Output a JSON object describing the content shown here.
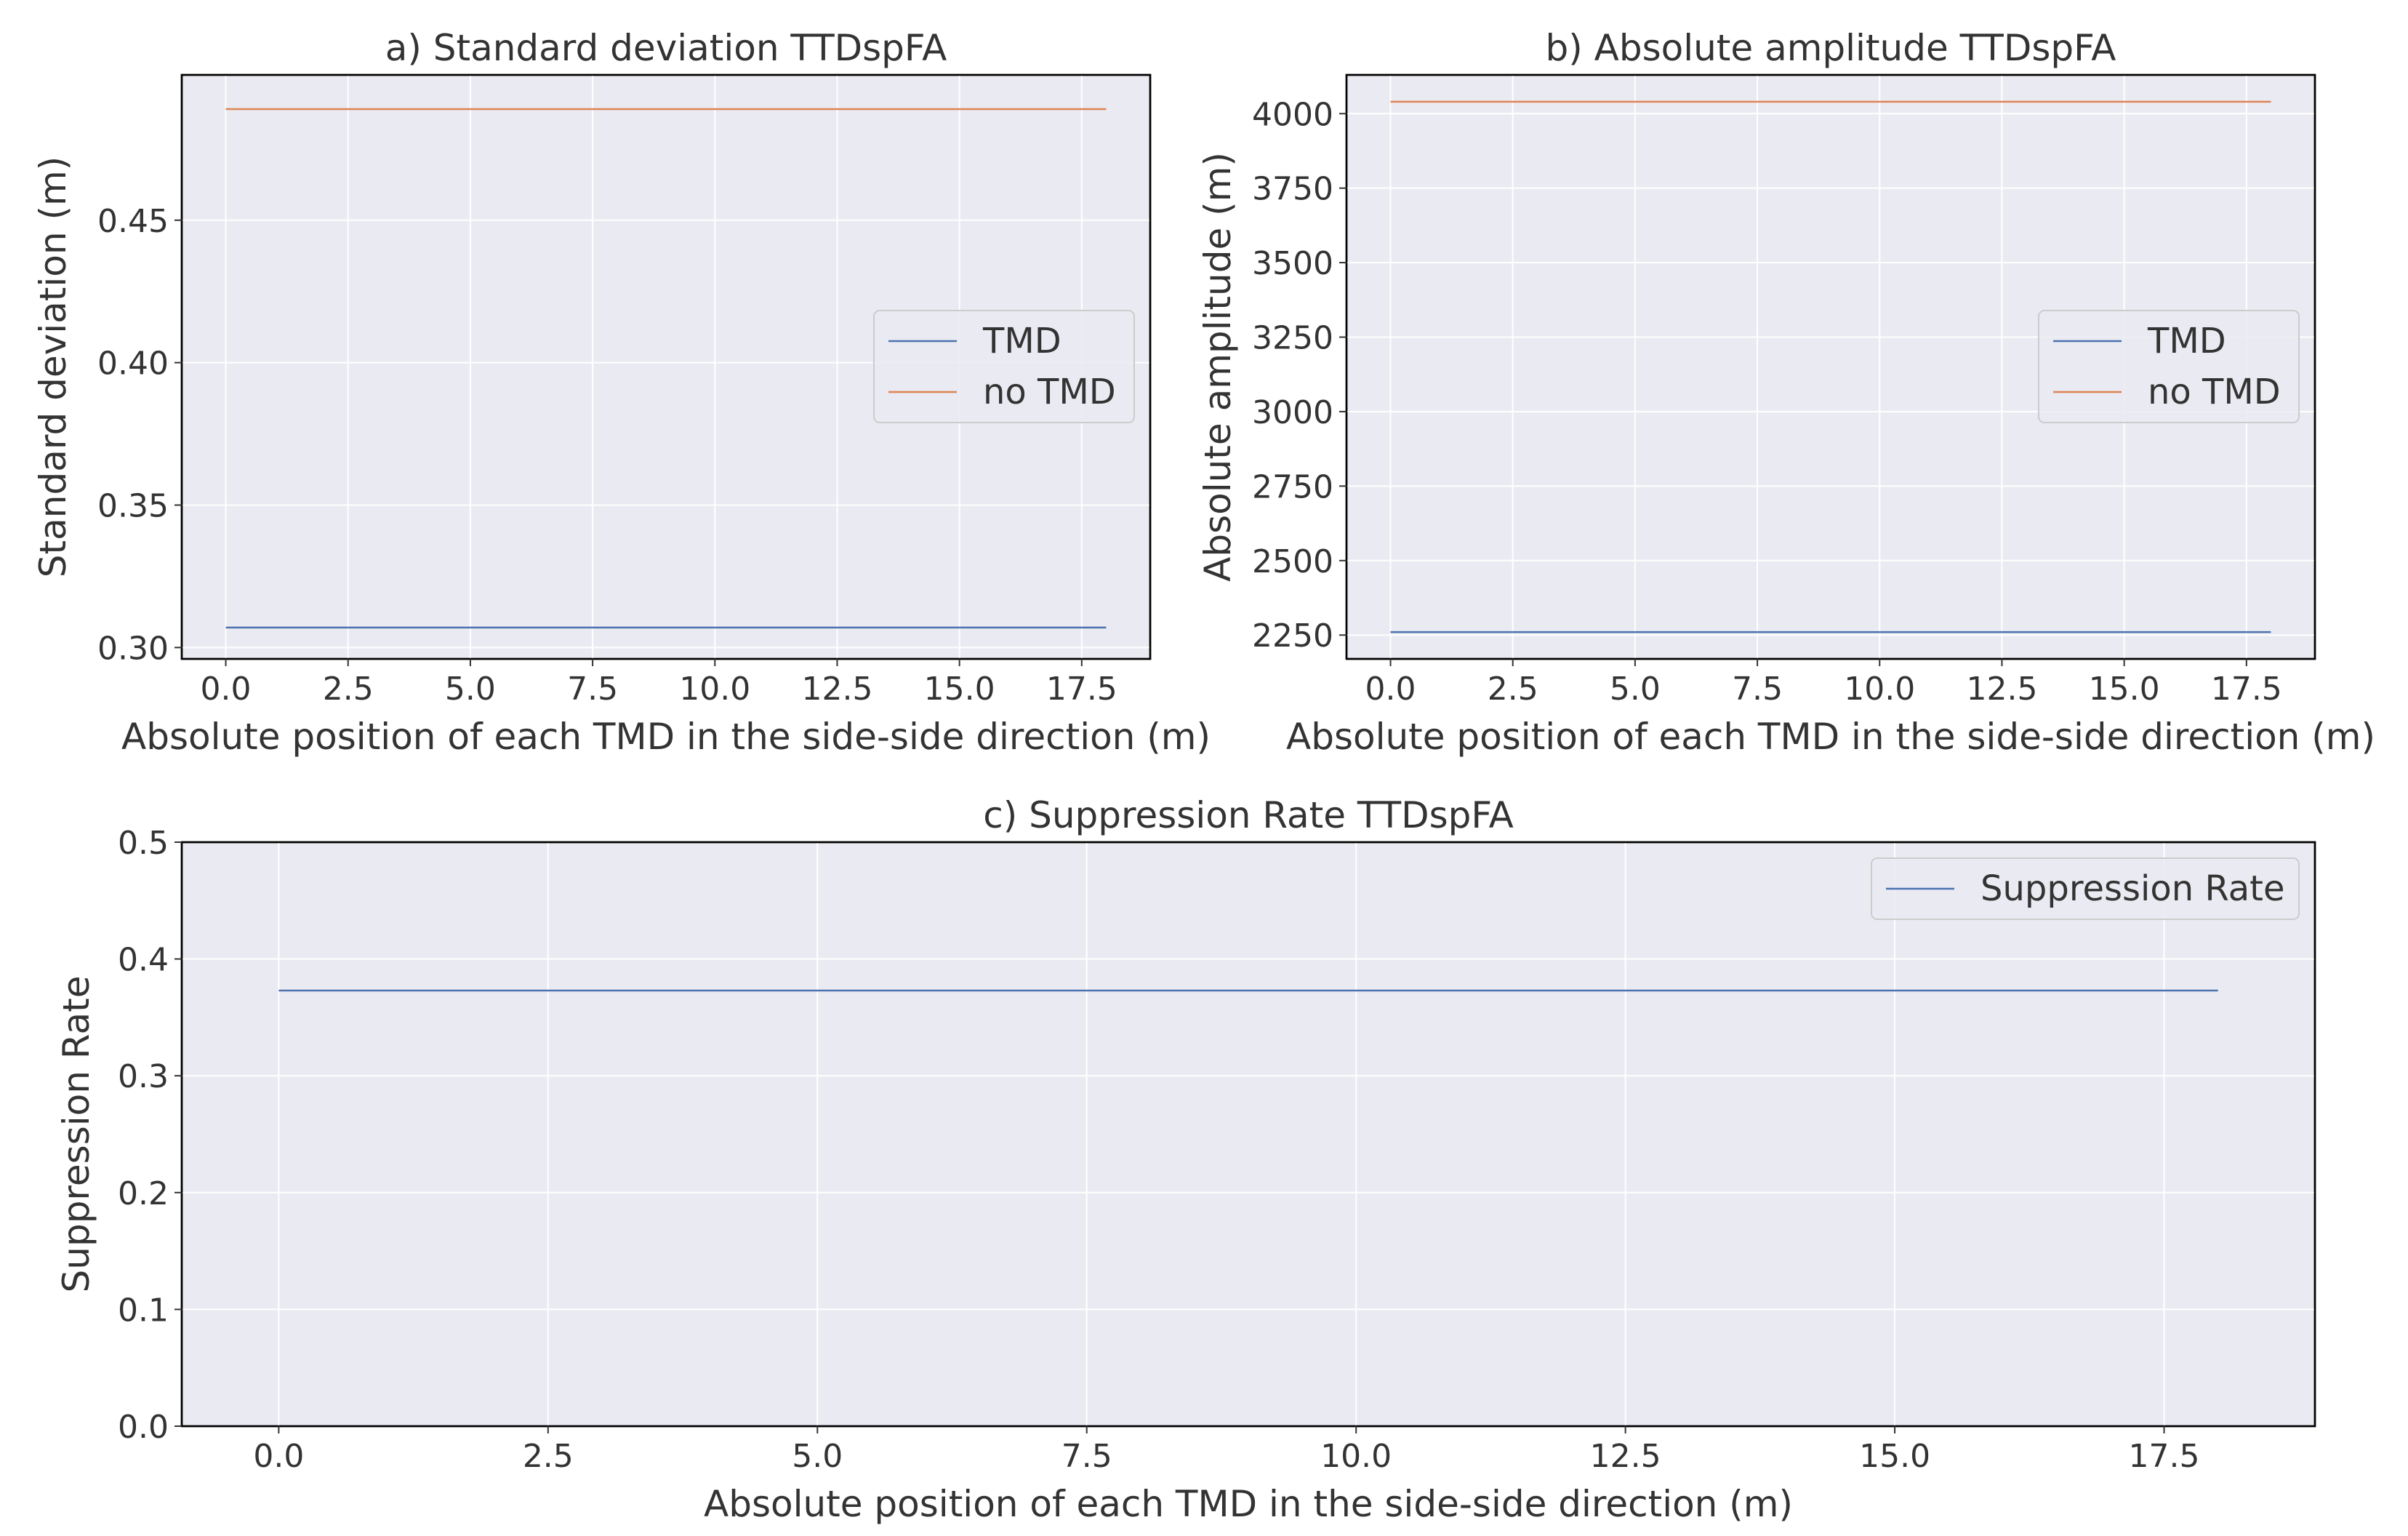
{
  "colors": {
    "tmd": "#4C72B0",
    "no_tmd": "#DD8452",
    "plot_background": "#EAEAF2"
  },
  "chart_data": [
    {
      "type": "line",
      "title": "a) Standard deviation TTDspFA",
      "xlabel": "Absolute position of each TMD in the side-side direction (m)",
      "ylabel": "Standard deviation (m)",
      "xlim": [
        -0.9,
        18.9
      ],
      "ylim": [
        0.296,
        0.501
      ],
      "xticks": [
        0.0,
        2.5,
        5.0,
        7.5,
        10.0,
        12.5,
        15.0,
        17.5
      ],
      "xtick_labels": [
        "0.0",
        "2.5",
        "5.0",
        "7.5",
        "10.0",
        "12.5",
        "15.0",
        "17.5"
      ],
      "yticks": [
        0.3,
        0.35,
        0.4,
        0.45
      ],
      "ytick_labels": [
        "0.30",
        "0.35",
        "0.40",
        "0.45"
      ],
      "grid": true,
      "legend_position": "center-right",
      "series": [
        {
          "name": "TMD",
          "color": "#4C72B0",
          "x": [
            0,
            18
          ],
          "y": [
            0.307,
            0.307
          ]
        },
        {
          "name": "no TMD",
          "color": "#DD8452",
          "x": [
            0,
            18
          ],
          "y": [
            0.489,
            0.489
          ]
        }
      ]
    },
    {
      "type": "line",
      "title": "b) Absolute amplitude TTDspFA",
      "xlabel": "Absolute position of each TMD in the side-side direction (m)",
      "ylabel": "Absolute amplitude (m)",
      "xlim": [
        -0.9,
        18.9
      ],
      "ylim": [
        2170,
        4130
      ],
      "xticks": [
        0.0,
        2.5,
        5.0,
        7.5,
        10.0,
        12.5,
        15.0,
        17.5
      ],
      "xtick_labels": [
        "0.0",
        "2.5",
        "5.0",
        "7.5",
        "10.0",
        "12.5",
        "15.0",
        "17.5"
      ],
      "yticks": [
        2250,
        2500,
        2750,
        3000,
        3250,
        3500,
        3750,
        4000
      ],
      "ytick_labels": [
        "2250",
        "2500",
        "2750",
        "3000",
        "3250",
        "3500",
        "3750",
        "4000"
      ],
      "grid": true,
      "legend_position": "center-right",
      "series": [
        {
          "name": "TMD",
          "color": "#4C72B0",
          "x": [
            0,
            18
          ],
          "y": [
            2260,
            2260
          ]
        },
        {
          "name": "no TMD",
          "color": "#DD8452",
          "x": [
            0,
            18
          ],
          "y": [
            4040,
            4040
          ]
        }
      ]
    },
    {
      "type": "line",
      "title": "c) Suppression Rate TTDspFA",
      "xlabel": "Absolute position of each TMD in the side-side direction (m)",
      "ylabel": "Suppression Rate",
      "xlim": [
        -0.9,
        18.9
      ],
      "ylim": [
        0.0,
        0.5
      ],
      "xticks": [
        0.0,
        2.5,
        5.0,
        7.5,
        10.0,
        12.5,
        15.0,
        17.5
      ],
      "xtick_labels": [
        "0.0",
        "2.5",
        "5.0",
        "7.5",
        "10.0",
        "12.5",
        "15.0",
        "17.5"
      ],
      "yticks": [
        0.0,
        0.1,
        0.2,
        0.3,
        0.4,
        0.5
      ],
      "ytick_labels": [
        "0.0",
        "0.1",
        "0.2",
        "0.3",
        "0.4",
        "0.5"
      ],
      "grid": true,
      "legend_position": "top-right",
      "series": [
        {
          "name": "Suppression Rate",
          "color": "#4C72B0",
          "x": [
            0,
            18
          ],
          "y": [
            0.373,
            0.373
          ]
        }
      ]
    }
  ]
}
